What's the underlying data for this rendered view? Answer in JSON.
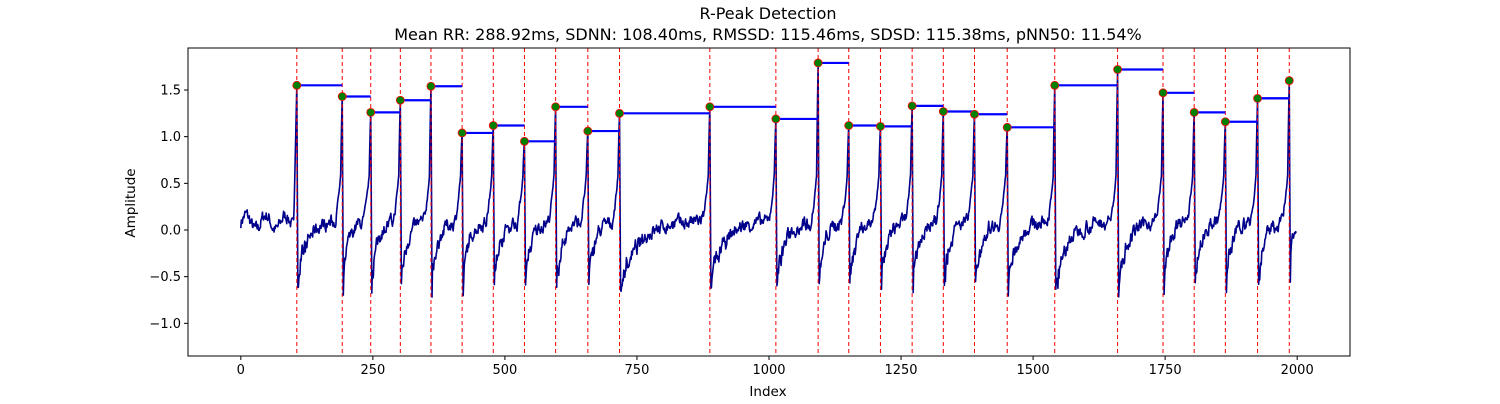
{
  "chart_data": {
    "type": "line",
    "title": "R-Peak Detection",
    "subtitle": "Mean RR: 288.92ms, SDNN: 108.40ms, RMSSD: 115.46ms, SDSD: 115.38ms, pNN50: 11.54%",
    "xlabel": "Index",
    "ylabel": "Amplitude",
    "xlim": [
      -100,
      2100
    ],
    "ylim": [
      -1.35,
      1.95
    ],
    "x_ticks": [
      0,
      250,
      500,
      750,
      1000,
      1250,
      1500,
      1750,
      2000
    ],
    "y_ticks": [
      -1.0,
      -0.5,
      0.0,
      0.5,
      1.0,
      1.5
    ],
    "grid": false,
    "colors": {
      "signal": "#00008b",
      "peak_lines": "#ff0000",
      "rr_segments": "#0000ff",
      "peak_marker_fill": "#008000",
      "peak_marker_edge": "#ff0000"
    },
    "signal_length": 2000,
    "peaks": [
      {
        "x": 106,
        "y": 1.55
      },
      {
        "x": 192,
        "y": 1.43
      },
      {
        "x": 246,
        "y": 1.26
      },
      {
        "x": 302,
        "y": 1.39
      },
      {
        "x": 360,
        "y": 1.54
      },
      {
        "x": 419,
        "y": 1.04
      },
      {
        "x": 478,
        "y": 1.12
      },
      {
        "x": 537,
        "y": 0.95
      },
      {
        "x": 596,
        "y": 1.32
      },
      {
        "x": 657,
        "y": 1.06
      },
      {
        "x": 717,
        "y": 1.25
      },
      {
        "x": 888,
        "y": 1.32
      },
      {
        "x": 1013,
        "y": 1.19
      },
      {
        "x": 1093,
        "y": 1.79
      },
      {
        "x": 1151,
        "y": 1.12
      },
      {
        "x": 1211,
        "y": 1.11
      },
      {
        "x": 1271,
        "y": 1.33
      },
      {
        "x": 1330,
        "y": 1.27
      },
      {
        "x": 1389,
        "y": 1.24
      },
      {
        "x": 1451,
        "y": 1.1
      },
      {
        "x": 1541,
        "y": 1.55
      },
      {
        "x": 1660,
        "y": 1.72
      },
      {
        "x": 1746,
        "y": 1.47
      },
      {
        "x": 1805,
        "y": 1.26
      },
      {
        "x": 1864,
        "y": 1.16
      },
      {
        "x": 1925,
        "y": 1.41
      },
      {
        "x": 1985,
        "y": 1.6
      }
    ]
  }
}
